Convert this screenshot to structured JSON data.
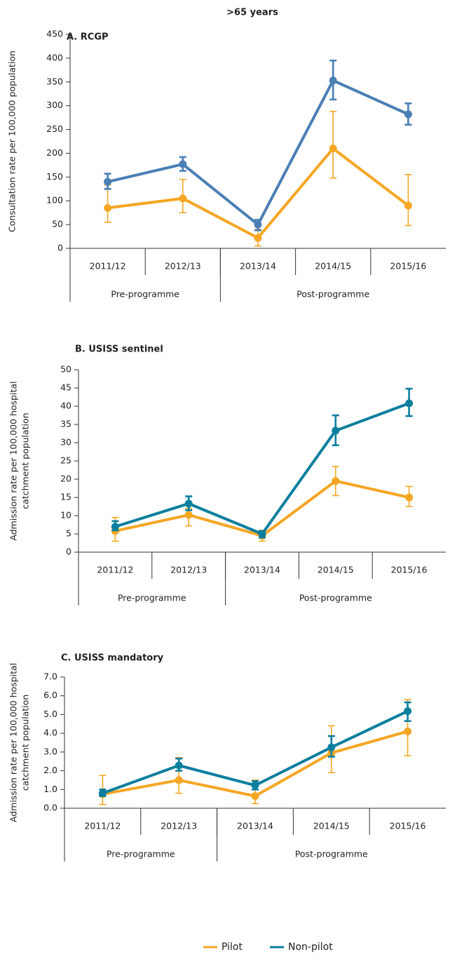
{
  "title": ">65 years",
  "chart_data": [
    {
      "type": "line",
      "title": "A. RCGP",
      "ylabel": [
        "Consultation rate per 100,000 population"
      ],
      "categories": [
        "2011/12",
        "2012/13",
        "2013/14",
        "2014/15",
        "2015/16"
      ],
      "groups": [
        {
          "label": "Pre-programme",
          "count": 2
        },
        {
          "label": "Post-programme",
          "count": 3
        }
      ],
      "ylim": [
        0,
        450
      ],
      "yticks": [
        0,
        50,
        100,
        150,
        200,
        250,
        300,
        350,
        400,
        450
      ],
      "series": [
        {
          "name": "Pilot",
          "color": "#f5a623",
          "values": [
            85,
            105,
            22,
            210,
            90
          ],
          "lower": [
            55,
            75,
            5,
            148,
            48
          ],
          "upper": [
            133,
            145,
            40,
            288,
            155
          ]
        },
        {
          "name": "Non-pilot",
          "color": "#4a7fb5",
          "values": [
            140,
            177,
            50,
            353,
            282
          ],
          "lower": [
            125,
            163,
            38,
            313,
            260
          ],
          "upper": [
            157,
            192,
            60,
            395,
            305
          ]
        }
      ]
    },
    {
      "type": "line",
      "title": "B. USISS sentinel",
      "ylabel": [
        "Admission rate per 100,000 hospital",
        "catchment population"
      ],
      "categories": [
        "2011/12",
        "2012/13",
        "2013/14",
        "2014/15",
        "2015/16"
      ],
      "groups": [
        {
          "label": "Pre-programme",
          "count": 2
        },
        {
          "label": "Post-programme",
          "count": 3
        }
      ],
      "ylim": [
        0,
        50
      ],
      "yticks": [
        0,
        5,
        10,
        15,
        20,
        25,
        30,
        35,
        40,
        45,
        50
      ],
      "series": [
        {
          "color": "#f5a623",
          "values": [
            5.8,
            10.2,
            4.5,
            19.5,
            15
          ],
          "lower": [
            3,
            7.2,
            3,
            15.5,
            12.5
          ],
          "upper": [
            9.5,
            12,
            6,
            23.5,
            18
          ]
        },
        {
          "color": "#0b7f9e",
          "values": [
            7,
            13.3,
            5,
            33.3,
            40.8
          ],
          "lower": [
            6,
            11.5,
            4,
            29.3,
            37.3
          ],
          "upper": [
            8.5,
            15.3,
            5.8,
            37.5,
            44.8
          ]
        }
      ]
    },
    {
      "type": "line",
      "title": "C. USISS mandatory",
      "ylabel": [
        "Admission rate per 100,000 hospital",
        "catchment population"
      ],
      "categories": [
        "2011/12",
        "2012/13",
        "2013/14",
        "2014/15",
        "2015/16"
      ],
      "groups": [
        {
          "label": "Pre-programme",
          "count": 2
        },
        {
          "label": "Post-programme",
          "count": 3
        }
      ],
      "ylim": [
        0,
        7
      ],
      "yticks": [
        {
          "value": 0,
          "label": "0.0"
        },
        {
          "value": 1,
          "label": "1.0"
        },
        {
          "value": 2,
          "label": "2.0"
        },
        {
          "value": 3,
          "label": "3.0"
        },
        {
          "value": 4,
          "label": "4.0"
        },
        {
          "value": 5,
          "label": "5.0"
        },
        {
          "value": 6,
          "label": "6.0"
        },
        {
          "value": 7,
          "label": "7.0"
        }
      ],
      "series": [
        {
          "color": "#f5a623",
          "values": [
            0.75,
            1.5,
            0.65,
            2.95,
            4.1
          ],
          "lower": [
            0.2,
            0.8,
            0.25,
            1.9,
            2.8
          ],
          "upper": [
            1.75,
            2.7,
            1.5,
            4.4,
            5.8
          ]
        },
        {
          "color": "#0b7f9e",
          "values": [
            0.8,
            2.28,
            1.22,
            3.25,
            5.18
          ],
          "lower": [
            0.65,
            2.0,
            1.0,
            2.75,
            4.65
          ],
          "upper": [
            1.0,
            2.65,
            1.45,
            3.85,
            5.65
          ]
        }
      ]
    }
  ]
}
